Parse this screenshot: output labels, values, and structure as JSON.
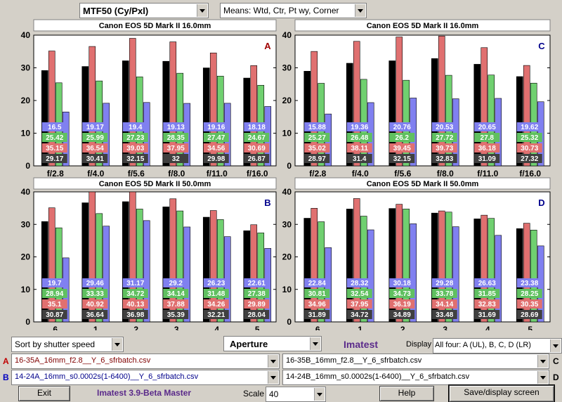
{
  "top": {
    "metric_select": "MTF50 (Cy/Pxl)",
    "means_select": "Means: Wtd, Ctr, Pt wy, Corner"
  },
  "colors": {
    "weighted": "#000000",
    "center": "#e07070",
    "partway": "#70d070",
    "corner": "#8080f0",
    "panel_title_bg": "#ffffff"
  },
  "chart_data": [
    {
      "type": "bar",
      "panel_letter": "A",
      "title": "Canon EOS 5D Mark II   16.0mm",
      "categories": [
        "f/2.8",
        "f/4.0",
        "f/5.6",
        "f/8.0",
        "f/11.0",
        "f/16.0"
      ],
      "ylim": [
        0,
        40
      ],
      "yticks": [
        0,
        10,
        20,
        30,
        40
      ],
      "series": [
        {
          "key": "weighted",
          "values": [
            29.17,
            30.41,
            32.15,
            32,
            29.98,
            26.87
          ]
        },
        {
          "key": "center",
          "values": [
            35.15,
            36.54,
            39.03,
            37.95,
            34.56,
            30.69
          ]
        },
        {
          "key": "partway",
          "values": [
            25.42,
            25.99,
            27.23,
            28.35,
            27.47,
            24.67
          ]
        },
        {
          "key": "corner",
          "values": [
            16.5,
            19.17,
            19.4,
            19.13,
            19.16,
            18.18
          ]
        }
      ]
    },
    {
      "type": "bar",
      "panel_letter": "C",
      "title": "Canon EOS 5D Mark II   16.0mm",
      "categories": [
        "f/2.8",
        "f/4.0",
        "f/5.6",
        "f/8.0",
        "f/11.0",
        "f/16.0"
      ],
      "ylim": [
        0,
        40
      ],
      "yticks": [
        0,
        10,
        20,
        30,
        40
      ],
      "series": [
        {
          "key": "weighted",
          "values": [
            28.97,
            31.4,
            32.15,
            32.83,
            31.09,
            27.32
          ]
        },
        {
          "key": "center",
          "values": [
            35.02,
            38.11,
            39.45,
            39.73,
            36.18,
            30.73
          ]
        },
        {
          "key": "partway",
          "values": [
            25.27,
            26.48,
            26.2,
            27.72,
            27.8,
            25.32
          ]
        },
        {
          "key": "corner",
          "values": [
            15.88,
            19.36,
            20.76,
            20.53,
            20.65,
            19.62
          ]
        }
      ]
    },
    {
      "type": "bar",
      "panel_letter": "B",
      "title": "Canon EOS 5D Mark II   50.0mm",
      "categories": [
        "6",
        "1",
        "2",
        "3",
        "4",
        "5"
      ],
      "ylim": [
        0,
        40
      ],
      "yticks": [
        0,
        10,
        20,
        30,
        40
      ],
      "series": [
        {
          "key": "weighted",
          "values": [
            30.87,
            36.64,
            36.98,
            35.39,
            32.21,
            28.04
          ]
        },
        {
          "key": "center",
          "values": [
            35.1,
            40.92,
            40.13,
            37.88,
            34.26,
            29.89
          ]
        },
        {
          "key": "partway",
          "values": [
            28.94,
            33.33,
            34.72,
            34.14,
            31.48,
            27.38
          ]
        },
        {
          "key": "corner",
          "values": [
            19.7,
            29.46,
            31.17,
            29.2,
            26.23,
            22.61
          ]
        }
      ]
    },
    {
      "type": "bar",
      "panel_letter": "D",
      "title": "Canon EOS 5D Mark II   50.0mm",
      "categories": [
        "6",
        "1",
        "2",
        "3",
        "4",
        "5"
      ],
      "ylim": [
        0,
        40
      ],
      "yticks": [
        0,
        10,
        20,
        30,
        40
      ],
      "series": [
        {
          "key": "weighted",
          "values": [
            31.89,
            34.72,
            34.89,
            33.48,
            31.69,
            28.69
          ]
        },
        {
          "key": "center",
          "values": [
            34.96,
            37.95,
            36.19,
            34.14,
            32.83,
            30.35
          ]
        },
        {
          "key": "partway",
          "values": [
            30.81,
            32.54,
            34.73,
            33.78,
            31.85,
            28.25
          ]
        },
        {
          "key": "corner",
          "values": [
            22.84,
            28.32,
            30.18,
            29.28,
            26.63,
            23.38
          ]
        }
      ]
    }
  ],
  "controls": {
    "sort_select": "Sort by shutter speed",
    "aperture_select": "Aperture",
    "app_name": "Imatest",
    "display_label": "Display",
    "display_select": "All four: A (UL), B, C, D (LR)"
  },
  "files": {
    "a_label": "A",
    "a_file": "16-35A_16mm_f2.8__Y_6_sfrbatch.csv",
    "b_label": "B",
    "b_file": "14-24A_16mm_s0.0002s(1-6400)__Y_6_sfrbatch.csv",
    "c_label": "C",
    "c_file": "16-35B_16mm_f2.8__Y_6_sfrbatch.csv",
    "d_label": "D",
    "d_file": "14-24B_16mm_s0.0002s(1-6400)__Y_6_sfrbatch.csv"
  },
  "bottom": {
    "exit": "Exit",
    "version": "Imatest 3.9-Beta Master",
    "scale_label": "Scale",
    "scale_value": "40",
    "help": "Help",
    "save": "Save/display screen"
  }
}
